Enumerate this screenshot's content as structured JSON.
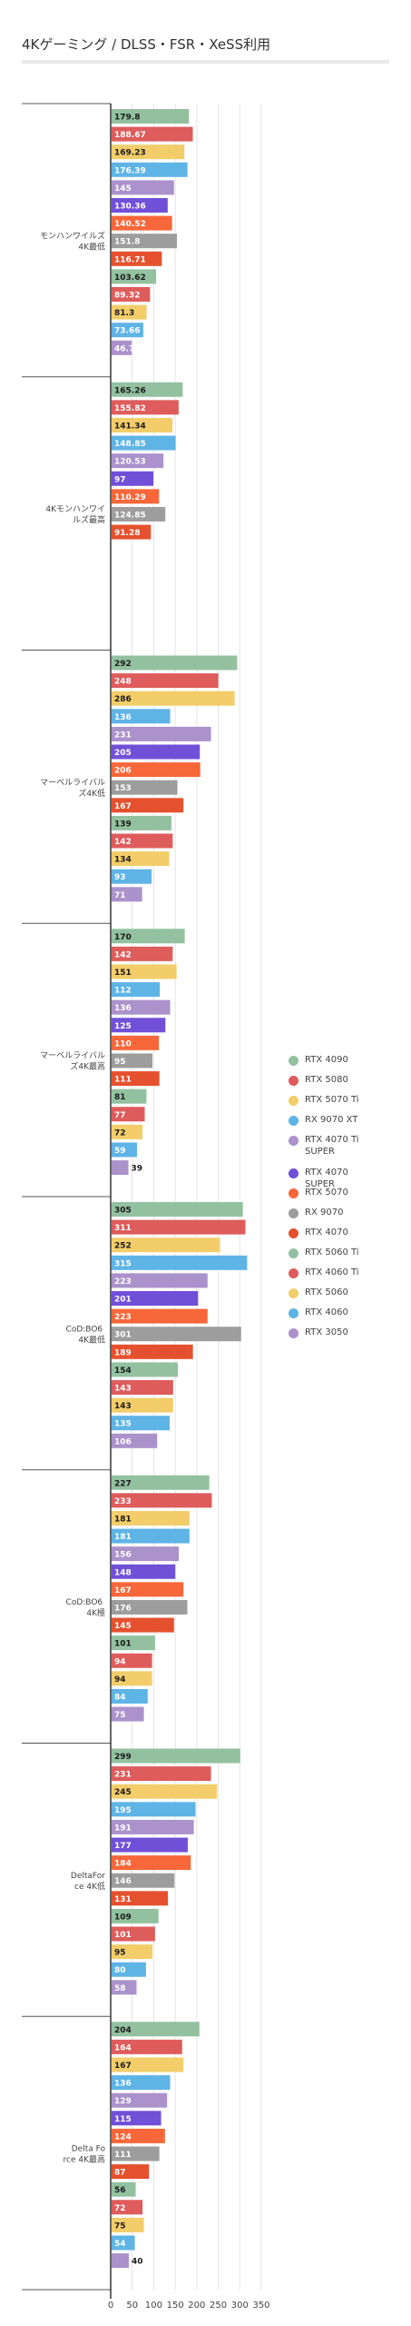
{
  "chart_data": {
    "type": "bar",
    "orientation": "horizontal",
    "title": "4Kゲーミング / DLSS・FSR・XeSS利用",
    "xlim": [
      0,
      350
    ],
    "xticks": [
      0,
      50,
      100,
      150,
      200,
      250,
      300,
      350
    ],
    "grid": true,
    "legend_position": "right",
    "legend": [
      {
        "name": "RTX 4090",
        "color": "#93c1a0"
      },
      {
        "name": "RTX 5080",
        "color": "#de5c5c"
      },
      {
        "name": "RTX 5070 Ti",
        "color": "#f2cd6a"
      },
      {
        "name": "RX 9070 XT",
        "color": "#5fb4e6"
      },
      {
        "name": "RTX 4070 Ti SUPER",
        "color": "#ab92cb"
      },
      {
        "name": "RTX 4070 SUPER",
        "color": "#7150d8"
      },
      {
        "name": "RTX 5070",
        "color": "#f7673a"
      },
      {
        "name": "RX 9070",
        "color": "#9d9d9d"
      },
      {
        "name": "RTX 4070",
        "color": "#e5512e"
      },
      {
        "name": "RTX 5060 Ti",
        "color": "#93c1a0"
      },
      {
        "name": "RTX 4060 Ti",
        "color": "#de5c5c"
      },
      {
        "name": "RTX 5060",
        "color": "#f2cd6a"
      },
      {
        "name": "RTX 4060",
        "color": "#5fb4e6"
      },
      {
        "name": "RTX 3050",
        "color": "#ab92cb"
      }
    ],
    "groups": [
      {
        "label": "モンハンワイルズ4K最低",
        "bars": [
          {
            "value": 179.8,
            "label": "179.8",
            "color": "#93c1a0"
          },
          {
            "value": 188.67,
            "label": "188.67",
            "color": "#de5c5c"
          },
          {
            "value": 169.23,
            "label": "169.23",
            "color": "#f2cd6a"
          },
          {
            "value": 176.39,
            "label": "176.39",
            "color": "#5fb4e6"
          },
          {
            "value": 145,
            "label": "145",
            "color": "#ab92cb"
          },
          {
            "value": 130.36,
            "label": "130.36",
            "color": "#7150d8"
          },
          {
            "value": 140.52,
            "label": "140.52",
            "color": "#f7673a"
          },
          {
            "value": 151.8,
            "label": "151.8",
            "color": "#9d9d9d"
          },
          {
            "value": 116.71,
            "label": "116.71",
            "color": "#e5512e"
          },
          {
            "value": 103.62,
            "label": "103.62",
            "color": "#93c1a0"
          },
          {
            "value": 89.32,
            "label": "89.32",
            "color": "#de5c5c"
          },
          {
            "value": 81.3,
            "label": "81.3",
            "color": "#f2cd6a"
          },
          {
            "value": 73.66,
            "label": "73.66",
            "color": "#5fb4e6"
          },
          {
            "value": 46.78,
            "label": "46.78",
            "color": "#ab92cb"
          }
        ]
      },
      {
        "label": "4Kモンハンワイルズ最高",
        "bars": [
          {
            "value": 165.26,
            "label": "165.26",
            "color": "#93c1a0"
          },
          {
            "value": 155.82,
            "label": "155.82",
            "color": "#de5c5c"
          },
          {
            "value": 141.34,
            "label": "141.34",
            "color": "#f2cd6a"
          },
          {
            "value": 148.85,
            "label": "148.85",
            "color": "#5fb4e6"
          },
          {
            "value": 120.53,
            "label": "120.53",
            "color": "#ab92cb"
          },
          {
            "value": 97,
            "label": "97",
            "color": "#7150d8"
          },
          {
            "value": 110.29,
            "label": "110.29",
            "color": "#f7673a"
          },
          {
            "value": 124.85,
            "label": "124.85",
            "color": "#9d9d9d"
          },
          {
            "value": 91.28,
            "label": "91.28",
            "color": "#e5512e"
          }
        ]
      },
      {
        "label": "マーベルライバルズ4K低",
        "bars": [
          {
            "value": 292,
            "label": "292",
            "color": "#93c1a0"
          },
          {
            "value": 248,
            "label": "248",
            "color": "#de5c5c"
          },
          {
            "value": 286,
            "label": "286",
            "color": "#f2cd6a"
          },
          {
            "value": 136,
            "label": "136",
            "color": "#5fb4e6"
          },
          {
            "value": 231,
            "label": "231",
            "color": "#ab92cb"
          },
          {
            "value": 205,
            "label": "205",
            "color": "#7150d8"
          },
          {
            "value": 206,
            "label": "206",
            "color": "#f7673a"
          },
          {
            "value": 153,
            "label": "153",
            "color": "#9d9d9d"
          },
          {
            "value": 167,
            "label": "167",
            "color": "#e5512e"
          },
          {
            "value": 139,
            "label": "139",
            "color": "#93c1a0"
          },
          {
            "value": 142,
            "label": "142",
            "color": "#de5c5c"
          },
          {
            "value": 134,
            "label": "134",
            "color": "#f2cd6a"
          },
          {
            "value": 93,
            "label": "93",
            "color": "#5fb4e6"
          },
          {
            "value": 71,
            "label": "71",
            "color": "#ab92cb"
          }
        ]
      },
      {
        "label": "マーベルライバルズ4K最高",
        "bars": [
          {
            "value": 170,
            "label": "170",
            "color": "#93c1a0"
          },
          {
            "value": 142,
            "label": "142",
            "color": "#de5c5c"
          },
          {
            "value": 151,
            "label": "151",
            "color": "#f2cd6a"
          },
          {
            "value": 112,
            "label": "112",
            "color": "#5fb4e6"
          },
          {
            "value": 136,
            "label": "136",
            "color": "#ab92cb"
          },
          {
            "value": 125,
            "label": "125",
            "color": "#7150d8"
          },
          {
            "value": 110,
            "label": "110",
            "color": "#f7673a"
          },
          {
            "value": 95,
            "label": "95",
            "color": "#9d9d9d"
          },
          {
            "value": 111,
            "label": "111",
            "color": "#e5512e"
          },
          {
            "value": 81,
            "label": "81",
            "color": "#93c1a0"
          },
          {
            "value": 77,
            "label": "77",
            "color": "#de5c5c"
          },
          {
            "value": 72,
            "label": "72",
            "color": "#f2cd6a"
          },
          {
            "value": 59,
            "label": "59",
            "color": "#5fb4e6"
          },
          {
            "value": 39,
            "label": "39",
            "color": "#ab92cb"
          }
        ]
      },
      {
        "label": "CoD:BO6 4K最低",
        "bars": [
          {
            "value": 305,
            "label": "305",
            "color": "#93c1a0"
          },
          {
            "value": 311,
            "label": "311",
            "color": "#de5c5c"
          },
          {
            "value": 252,
            "label": "252",
            "color": "#f2cd6a"
          },
          {
            "value": 315,
            "label": "315",
            "color": "#5fb4e6"
          },
          {
            "value": 223,
            "label": "223",
            "color": "#ab92cb"
          },
          {
            "value": 201,
            "label": "201",
            "color": "#7150d8"
          },
          {
            "value": 223,
            "label": "223",
            "color": "#f7673a"
          },
          {
            "value": 301,
            "label": "301",
            "color": "#9d9d9d"
          },
          {
            "value": 189,
            "label": "189",
            "color": "#e5512e"
          },
          {
            "value": 154,
            "label": "154",
            "color": "#93c1a0"
          },
          {
            "value": 143,
            "label": "143",
            "color": "#de5c5c"
          },
          {
            "value": 143,
            "label": "143",
            "color": "#f2cd6a"
          },
          {
            "value": 135,
            "label": "135",
            "color": "#5fb4e6"
          },
          {
            "value": 106,
            "label": "106",
            "color": "#ab92cb"
          }
        ]
      },
      {
        "label": "CoD:BO6 4K極",
        "bars": [
          {
            "value": 227,
            "label": "227",
            "color": "#93c1a0"
          },
          {
            "value": 233,
            "label": "233",
            "color": "#de5c5c"
          },
          {
            "value": 181,
            "label": "181",
            "color": "#f2cd6a"
          },
          {
            "value": 181,
            "label": "181",
            "color": "#5fb4e6"
          },
          {
            "value": 156,
            "label": "156",
            "color": "#ab92cb"
          },
          {
            "value": 148,
            "label": "148",
            "color": "#7150d8"
          },
          {
            "value": 167,
            "label": "167",
            "color": "#f7673a"
          },
          {
            "value": 176,
            "label": "176",
            "color": "#9d9d9d"
          },
          {
            "value": 145,
            "label": "145",
            "color": "#e5512e"
          },
          {
            "value": 101,
            "label": "101",
            "color": "#93c1a0"
          },
          {
            "value": 94,
            "label": "94",
            "color": "#de5c5c"
          },
          {
            "value": 94,
            "label": "94",
            "color": "#f2cd6a"
          },
          {
            "value": 84,
            "label": "84",
            "color": "#5fb4e6"
          },
          {
            "value": 75,
            "label": "75",
            "color": "#ab92cb"
          }
        ]
      },
      {
        "label": "DeltaForce 4K低",
        "bars": [
          {
            "value": 299,
            "label": "299",
            "color": "#93c1a0"
          },
          {
            "value": 231,
            "label": "231",
            "color": "#de5c5c"
          },
          {
            "value": 245,
            "label": "245",
            "color": "#f2cd6a"
          },
          {
            "value": 195,
            "label": "195",
            "color": "#5fb4e6"
          },
          {
            "value": 191,
            "label": "191",
            "color": "#ab92cb"
          },
          {
            "value": 177,
            "label": "177",
            "color": "#7150d8"
          },
          {
            "value": 184,
            "label": "184",
            "color": "#f7673a"
          },
          {
            "value": 146,
            "label": "146",
            "color": "#9d9d9d"
          },
          {
            "value": 131,
            "label": "131",
            "color": "#e5512e"
          },
          {
            "value": 109,
            "label": "109",
            "color": "#93c1a0"
          },
          {
            "value": 101,
            "label": "101",
            "color": "#de5c5c"
          },
          {
            "value": 95,
            "label": "95",
            "color": "#f2cd6a"
          },
          {
            "value": 80,
            "label": "80",
            "color": "#5fb4e6"
          },
          {
            "value": 58,
            "label": "58",
            "color": "#ab92cb"
          }
        ]
      },
      {
        "label": "Delta Force 4K最高",
        "bars": [
          {
            "value": 204,
            "label": "204",
            "color": "#93c1a0"
          },
          {
            "value": 164,
            "label": "164",
            "color": "#de5c5c"
          },
          {
            "value": 167,
            "label": "167",
            "color": "#f2cd6a"
          },
          {
            "value": 136,
            "label": "136",
            "color": "#5fb4e6"
          },
          {
            "value": 129,
            "label": "129",
            "color": "#ab92cb"
          },
          {
            "value": 115,
            "label": "115",
            "color": "#7150d8"
          },
          {
            "value": 124,
            "label": "124",
            "color": "#f7673a"
          },
          {
            "value": 111,
            "label": "111",
            "color": "#9d9d9d"
          },
          {
            "value": 87,
            "label": "87",
            "color": "#e5512e"
          },
          {
            "value": 56,
            "label": "56",
            "color": "#93c1a0"
          },
          {
            "value": 72,
            "label": "72",
            "color": "#de5c5c"
          },
          {
            "value": 75,
            "label": "75",
            "color": "#f2cd6a"
          },
          {
            "value": 54,
            "label": "54",
            "color": "#5fb4e6"
          },
          {
            "value": 40,
            "label": "40",
            "color": "#ab92cb"
          }
        ]
      }
    ]
  }
}
